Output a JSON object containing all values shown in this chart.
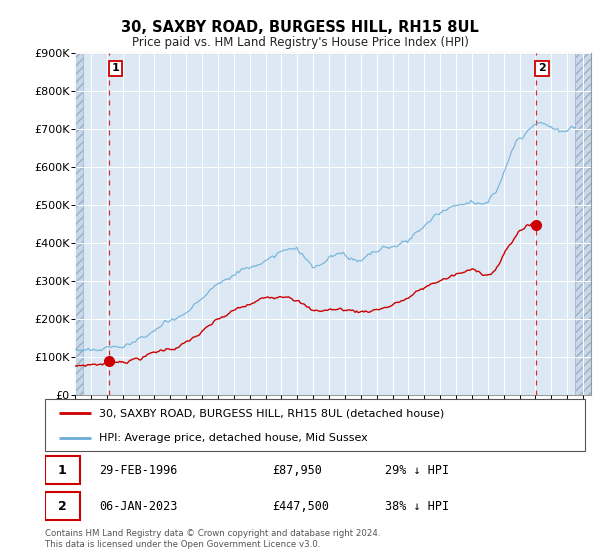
{
  "title": "30, SAXBY ROAD, BURGESS HILL, RH15 8UL",
  "subtitle": "Price paid vs. HM Land Registry's House Price Index (HPI)",
  "legend_line1": "30, SAXBY ROAD, BURGESS HILL, RH15 8UL (detached house)",
  "legend_line2": "HPI: Average price, detached house, Mid Sussex",
  "sale1_date": "29-FEB-1996",
  "sale1_price": "£87,950",
  "sale1_hpi": "29% ↓ HPI",
  "sale2_date": "06-JAN-2023",
  "sale2_price": "£447,500",
  "sale2_hpi": "38% ↓ HPI",
  "footer": "Contains HM Land Registry data © Crown copyright and database right 2024.\nThis data is licensed under the Open Government Licence v3.0.",
  "plot_bg": "#dce9f5",
  "ylim": [
    0,
    900000
  ],
  "ytick_vals": [
    0,
    100000,
    200000,
    300000,
    400000,
    500000,
    600000,
    700000,
    800000,
    900000
  ],
  "ytick_labels": [
    "£0",
    "£100K",
    "£200K",
    "£300K",
    "£400K",
    "£500K",
    "£600K",
    "£700K",
    "£800K",
    "£900K"
  ],
  "sale1_x": 1996.16,
  "sale1_y": 87950,
  "sale2_x": 2023.02,
  "sale2_y": 447500,
  "xlim": [
    1994.0,
    2026.5
  ],
  "hatch_left_end": 1994.5,
  "hatch_right_start": 2025.5,
  "red_color": "#cc0000",
  "blue_color": "#6baed6"
}
